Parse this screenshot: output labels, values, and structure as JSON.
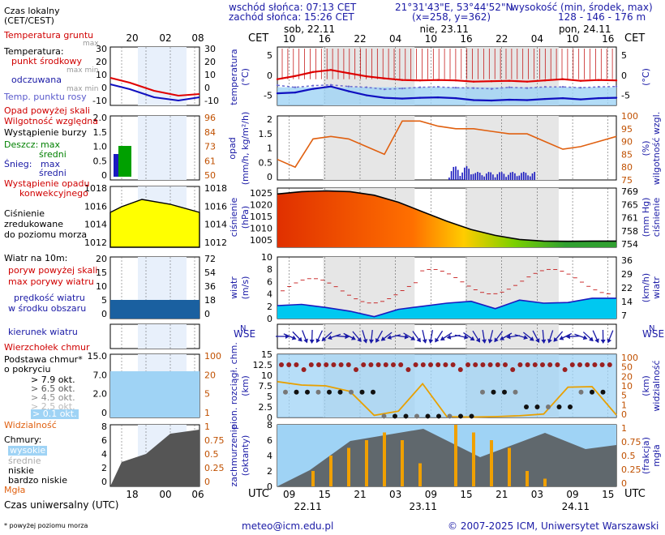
{
  "header": {
    "sunrise": "wschód słońca: 07:13 CET",
    "sunset": "zachód słońca: 15:26 CET",
    "lat": "21°31'43\"E, 53°44'52\"N",
    "grid": "(x=258, y=362)",
    "alt_title": "wysokość (min, środek, max)",
    "alt_values": "128 - 146 - 176 m"
  },
  "legend": {
    "local_time": "Czas lokalny",
    "local_time2": "(CET/CEST)",
    "small_hours": [
      "20",
      "02",
      "08"
    ],
    "utc_hours": [
      "18",
      "00",
      "06"
    ],
    "ground_temp": "Temperatura gruntu",
    "ground_temp_max": "max",
    "ground_temp_min": "max min",
    "temperature": "Temperatura:",
    "temp_mid": "punkt środkowy",
    "temp_mid_max": "max min",
    "perceived": "odczuwana",
    "perceived_max": "max min",
    "dewpoint": "Temp. punktu rosy",
    "precip_above": "Opad powyżej skali",
    "humidity": "Wilgotność względna",
    "storm": "Wystąpienie burzy",
    "rain": "Deszcz:",
    "rain_max": "max",
    "rain_mean": "średni",
    "snow": "Śnieg:",
    "snow_max": "max",
    "snow_mean": "średni",
    "conv1": "Wystąpienie opadu",
    "conv2": "konwekcyjnego",
    "pressure1": "Ciśnienie",
    "pressure2": "zredukowane",
    "pressure3": "do poziomu morza",
    "wind_title": "Wiatr na 10m:",
    "gust_above": "poryw powyżej skali",
    "gust_max": "max porywy wiatru",
    "wind_speed1": "prędkość wiatru",
    "wind_speed2": "w środku obszaru",
    "wind_dir": "kierunek wiatru",
    "cloud_top": "Wierzchołek chmur",
    "cloud_base1": "Podstawa chmur*",
    "cloud_base2": "o pokryciu",
    "okt": [
      "> 7.9 okt.",
      "> 6.5 okt.",
      "> 4.5 okt.",
      "> 2.5 okt.",
      "> 0.1 okt."
    ],
    "visibility": "Widzialność",
    "clouds": "Chmury:",
    "cloud_high": "wysokie",
    "cloud_mid": "średnie",
    "cloud_low": "niskie",
    "cloud_vlow": "bardzo niskie",
    "fog": "Mgła",
    "utc": "Czas uniwersalny (UTC)",
    "footnote": "* powyżej poziomu morza"
  },
  "main": {
    "cet": "CET",
    "utc": "UTC",
    "days_top": [
      "sob, 22.11",
      "nie, 23.11",
      "pon, 24.11"
    ],
    "hours_top": [
      "10",
      "16",
      "22",
      "04",
      "10",
      "16",
      "22",
      "04",
      "10",
      "16"
    ],
    "hours_bottom": [
      "09",
      "15",
      "21",
      "03",
      "09",
      "15",
      "21",
      "03",
      "09",
      "15"
    ],
    "days_bottom": [
      "22.11",
      "23.11",
      "24.11"
    ],
    "p_temp_label": "temperatura",
    "p_temp_unit": "(°C)",
    "p_rain_label": "opad",
    "p_rain_unit": "(mm/h, kg/m²/h)",
    "p_hum_label": "wilgotność wzgl.",
    "p_hum_unit": "(%)",
    "p_pres_label": "ciśnienie",
    "p_pres_unit": "(hPa)",
    "p_pres_unit2": "(mm Hg)",
    "p_wind_label": "wiatr",
    "p_wind_unit": "(m/s)",
    "p_wind_unit2": "(km/h)",
    "p_cloud_label": "pion. rozciągł. chm.",
    "p_cloud_unit": "(km)",
    "p_vis_label": "widzialność",
    "p_vis_unit": "(km)",
    "p_cov_label": "zachmurzenie",
    "p_cov_unit": "(oktanty)",
    "p_fog_label": "mgła",
    "p_fog_unit": "(frakcja)",
    "wse": "WSE",
    "wse_n": "N"
  },
  "footer": {
    "email": "meteo@icm.edu.pl",
    "copyright": "© 2007-2025 ICM, Uniwersytet Warszawski"
  },
  "chart_data": [
    {
      "type": "line",
      "title": "temperatura",
      "ylabel": "(°C)",
      "ylim": [
        -7.5,
        7
      ],
      "yticks": [
        5,
        0,
        -5
      ],
      "series": [
        {
          "name": "temperature max",
          "values": [
            -1,
            -0.2,
            0.8,
            1.3,
            0.5,
            -0.3,
            -0.8,
            -1.2,
            -1.3,
            -1.2,
            -1.3,
            -1.6,
            -1.5,
            -1.4,
            -1.6,
            -1.3,
            -1.0,
            -1.4,
            -1.2,
            -1.3
          ]
        },
        {
          "name": "perceived",
          "values": [
            -4.5,
            -4.3,
            -3.4,
            -2.8,
            -4.0,
            -5.0,
            -5.6,
            -5.8,
            -5.6,
            -5.5,
            -5.7,
            -6.2,
            -6.3,
            -6.1,
            -6.2,
            -5.9,
            -5.7,
            -6.0,
            -5.7,
            -5.6
          ]
        },
        {
          "name": "dewpoint",
          "values": [
            -2.5,
            -3.0,
            -2.6,
            -2.4,
            -2.8,
            -3.0,
            -3.5,
            -3.3,
            -3.0,
            -2.9,
            -3.1,
            -3.2,
            -3.4,
            -3.0,
            -3.2,
            -2.9,
            -2.9,
            -3.1,
            -2.9,
            -2.8
          ]
        }
      ]
    },
    {
      "type": "line",
      "title": "wilgotność wzgl.",
      "ylabel": "(%)",
      "ylim": [
        75,
        100
      ],
      "yticks": [
        100,
        95,
        90,
        85,
        80,
        75
      ],
      "values": [
        83,
        80,
        91,
        92,
        91,
        88,
        85,
        98,
        98,
        96,
        95,
        95,
        94,
        93,
        93,
        90,
        87,
        88,
        90,
        92
      ]
    },
    {
      "type": "area",
      "title": "ciśnienie",
      "ylabel": "(hPa)",
      "ylim": [
        1002,
        1027
      ],
      "yticks": [
        1025,
        1020,
        1015,
        1010,
        1005
      ],
      "yticks_right": [
        769,
        765,
        761,
        758,
        754
      ],
      "values": [
        1024.5,
        1025.5,
        1025.8,
        1025.5,
        1024,
        1021,
        1017,
        1013,
        1009.5,
        1007,
        1005.3,
        1004.6,
        1004.5,
        1004.6,
        1004.6
      ]
    },
    {
      "type": "area",
      "title": "wiatr",
      "ylabel": "(m/s)",
      "ylim": [
        0,
        10
      ],
      "yticks": [
        10,
        8,
        6,
        4,
        2,
        0
      ],
      "yticks_right": [
        36,
        29,
        22,
        14,
        7
      ],
      "values": [
        2.1,
        2.3,
        1.8,
        1.2,
        0.3,
        1.5,
        2.0,
        2.5,
        2.8,
        1.6,
        3.0,
        2.5,
        2.6,
        3.3,
        3.3
      ]
    },
    {
      "type": "line",
      "title": "pion. rozciągł. chm.",
      "ylabel": "(km)",
      "ylim": [
        0,
        15
      ],
      "yticks": [
        15,
        12.5,
        10,
        7.5,
        5,
        2.5,
        0
      ],
      "yticks_right": [
        100,
        50,
        20,
        10,
        5,
        1,
        0
      ],
      "values": [
        8.5,
        7.7,
        7.5,
        6.2,
        0.5,
        1.5,
        8.0,
        0.2,
        0.1,
        0.2,
        0.4,
        0.8,
        7.2,
        7.3,
        0.6
      ]
    },
    {
      "type": "bar",
      "title": "zachmurzenie",
      "ylabel": "(oktanty)",
      "ylim": [
        0,
        8
      ],
      "yticks": [
        8,
        6,
        4,
        2,
        0
      ],
      "yticks_right": [
        1,
        0.75,
        0.5,
        0.25,
        0
      ],
      "values": [
        0,
        0,
        2,
        4,
        5,
        6,
        7,
        6,
        3,
        0,
        8,
        7,
        6,
        5,
        2,
        1,
        0,
        0,
        0,
        0
      ]
    }
  ]
}
